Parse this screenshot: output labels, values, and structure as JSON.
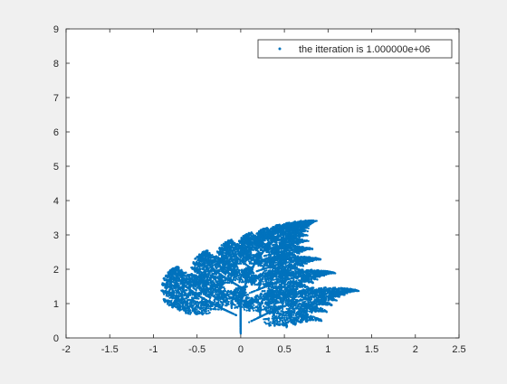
{
  "chart_data": {
    "type": "scatter",
    "title": "",
    "xlabel": "",
    "ylabel": "",
    "xlim": [
      -2,
      2.5
    ],
    "ylim": [
      0,
      9
    ],
    "x_ticks": [
      "-2",
      "-1.5",
      "-1",
      "-0.5",
      "0",
      "0.5",
      "1",
      "1.5",
      "2",
      "2.5"
    ],
    "y_ticks": [
      "0",
      "1",
      "2",
      "3",
      "4",
      "5",
      "6",
      "7",
      "8",
      "9"
    ],
    "x_tick_values": [
      -2,
      -1.5,
      -1,
      -0.5,
      0,
      0.5,
      1,
      1.5,
      2,
      2.5
    ],
    "y_tick_values": [
      0,
      1,
      2,
      3,
      4,
      5,
      6,
      7,
      8,
      9
    ],
    "grid": false,
    "legend_position": "top-right",
    "series": [
      {
        "name": "the itteration is 1.000000e+06",
        "marker": "point",
        "color": "#0072BD",
        "note": "Barnsley-style IFS fern point cloud, 1,000,000 points"
      }
    ]
  }
}
